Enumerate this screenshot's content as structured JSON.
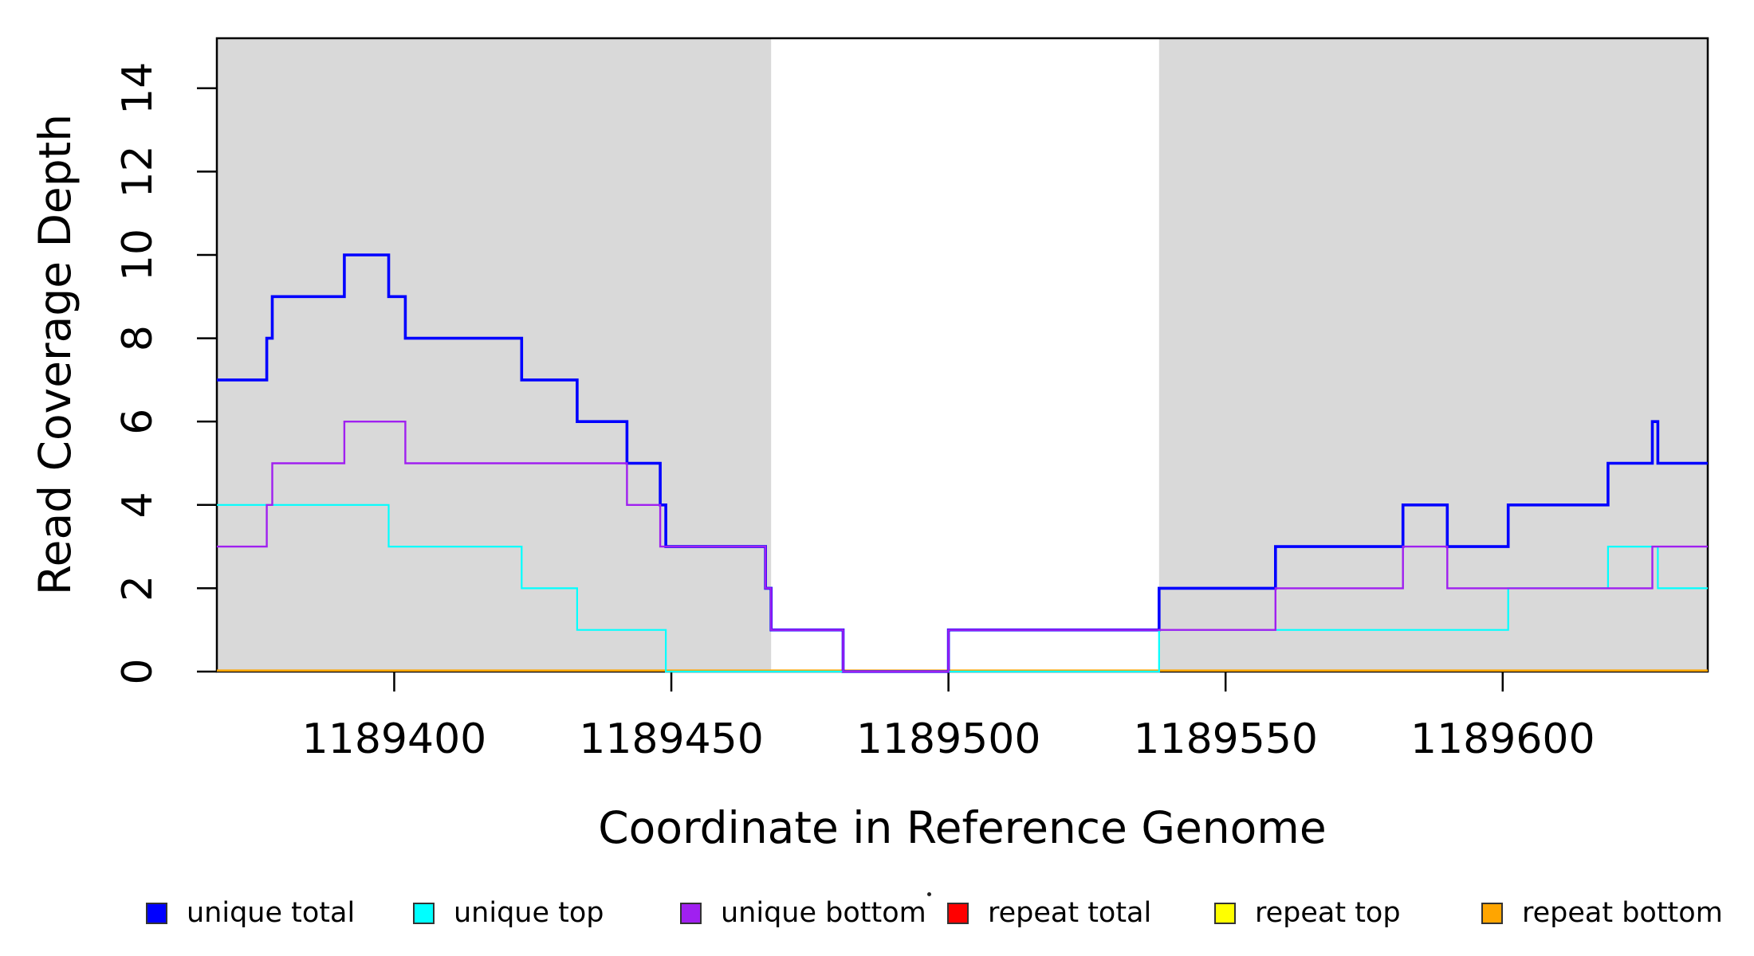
{
  "chart_data": {
    "type": "step-line",
    "title": "",
    "xlabel": "Coordinate in Reference Genome",
    "ylabel": "Read Coverage Depth",
    "xlim": [
      1189368,
      1189637
    ],
    "ylim": [
      0,
      15.2
    ],
    "x_ticks": [
      1189400,
      1189450,
      1189500,
      1189550,
      1189600
    ],
    "y_ticks": [
      0,
      2,
      4,
      6,
      8,
      10,
      12,
      14
    ],
    "grid": false,
    "background_color": "#FFFFFF",
    "shade_color": "#D9D9D9",
    "axis_color": "#000000",
    "legend_position": "bottom",
    "shaded_regions": [
      {
        "from": 1189368,
        "to": 1189468
      },
      {
        "from": 1189538,
        "to": 1189637
      }
    ],
    "series": [
      {
        "name": "unique total",
        "color": "#0000FF",
        "steps": [
          [
            1189368,
            7
          ],
          [
            1189377,
            8
          ],
          [
            1189378,
            9
          ],
          [
            1189391,
            10
          ],
          [
            1189399,
            9
          ],
          [
            1189402,
            8
          ],
          [
            1189423,
            7
          ],
          [
            1189433,
            6
          ],
          [
            1189442,
            5
          ],
          [
            1189448,
            4
          ],
          [
            1189449,
            3
          ],
          [
            1189467,
            2
          ],
          [
            1189468,
            1
          ],
          [
            1189481,
            0
          ],
          [
            1189500,
            1
          ],
          [
            1189538,
            2
          ],
          [
            1189559,
            3
          ],
          [
            1189582,
            4
          ],
          [
            1189590,
            3
          ],
          [
            1189601,
            4
          ],
          [
            1189619,
            5
          ],
          [
            1189627,
            6
          ],
          [
            1189628,
            5
          ]
        ]
      },
      {
        "name": "unique top",
        "color": "#00FFFF",
        "steps": [
          [
            1189368,
            4
          ],
          [
            1189399,
            3
          ],
          [
            1189423,
            2
          ],
          [
            1189433,
            1
          ],
          [
            1189449,
            0
          ],
          [
            1189538,
            1
          ],
          [
            1189601,
            2
          ],
          [
            1189619,
            3
          ],
          [
            1189628,
            2
          ]
        ]
      },
      {
        "name": "unique bottom",
        "color": "#A020F0",
        "steps": [
          [
            1189368,
            3
          ],
          [
            1189377,
            4
          ],
          [
            1189378,
            5
          ],
          [
            1189391,
            6
          ],
          [
            1189402,
            5
          ],
          [
            1189442,
            4
          ],
          [
            1189448,
            3
          ],
          [
            1189467,
            2
          ],
          [
            1189468,
            1
          ],
          [
            1189481,
            0
          ],
          [
            1189500,
            1
          ],
          [
            1189559,
            2
          ],
          [
            1189582,
            3
          ],
          [
            1189590,
            2
          ],
          [
            1189627,
            3
          ]
        ]
      },
      {
        "name": "repeat total",
        "color": "#FF0000",
        "steps": [
          [
            1189368,
            0
          ]
        ]
      },
      {
        "name": "repeat top",
        "color": "#FFFF00",
        "steps": [
          [
            1189368,
            0
          ]
        ]
      },
      {
        "name": "repeat bottom",
        "color": "#FFA500",
        "steps": [
          [
            1189368,
            0
          ]
        ]
      }
    ]
  }
}
